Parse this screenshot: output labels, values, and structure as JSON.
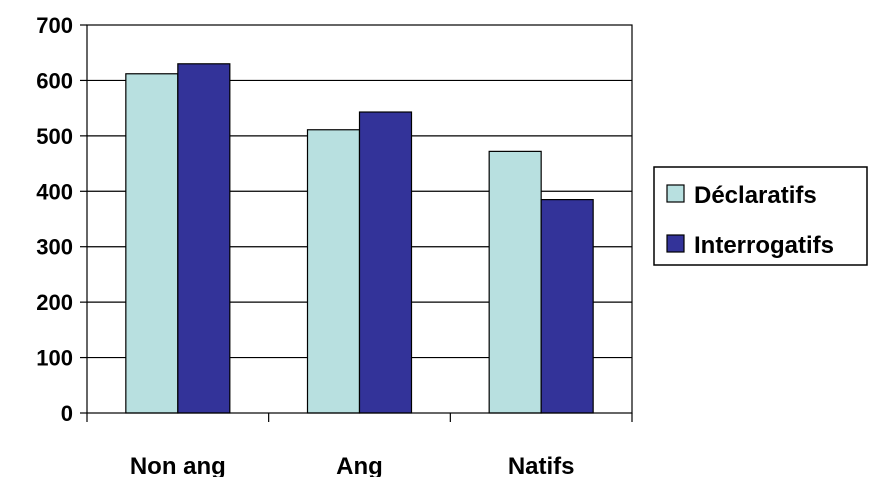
{
  "chart_data": {
    "type": "bar",
    "categories": [
      "Non ang",
      "Ang",
      "Natifs"
    ],
    "series": [
      {
        "name": "Déclaratifs",
        "values": [
          612,
          511,
          472
        ],
        "color": "#b8e0e0"
      },
      {
        "name": "Interrogatifs",
        "values": [
          630,
          543,
          385
        ],
        "color": "#333399"
      }
    ],
    "ylim": [
      0,
      700
    ],
    "yticks": [
      0,
      100,
      200,
      300,
      400,
      500,
      600,
      700
    ],
    "grid": true,
    "legend_position": "right",
    "title": "",
    "xlabel": "",
    "ylabel": ""
  }
}
